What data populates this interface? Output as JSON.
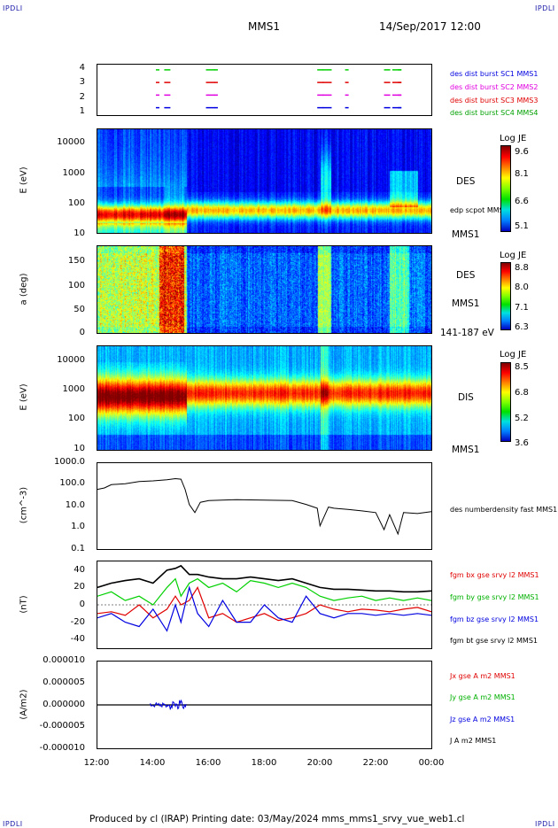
{
  "header": {
    "corner_left": "IPDLI",
    "corner_right": "IPDLI",
    "corner_bottom_left": "IPDLI",
    "corner_bottom_right": "IPDLI",
    "spacecraft": "MMS1",
    "datetime": "14/Sep/2017 12:00"
  },
  "footer": {
    "text": "Produced by cl (IRAP)   Printing date: 03/May/2024   mms_mms1_srvy_vue_web1.cl"
  },
  "colors": {
    "blue": "#0000e0",
    "magenta": "#e000e0",
    "red": "#e00000",
    "green": "#00d000",
    "black": "#000000"
  },
  "chart_data": [
    {
      "type": "scatter",
      "panel": "burst-availability",
      "y_ticks": [
        "4",
        "3",
        "2",
        "1"
      ],
      "legend": [
        {
          "label": "des dist burst SC1 MMS1",
          "color": "#0000e0"
        },
        {
          "label": "des dist burst SC2 MMS2",
          "color": "#e000e0"
        },
        {
          "label": "des dist burst SC3 MMS3",
          "color": "#e00000"
        },
        {
          "label": "des dist burst SC4 MMS4",
          "color": "#00d000"
        }
      ]
    },
    {
      "type": "heatmap",
      "panel": "des-energy-spectrogram",
      "ylabel": "E (eV)",
      "y_ticks": [
        "10000",
        "1000",
        "100",
        "10"
      ],
      "ylim": [
        10,
        30000
      ],
      "log": true,
      "right_labels": [
        "DES",
        "edp scpot MMS1",
        "MMS1"
      ],
      "colorbar": {
        "title": "Log JE",
        "ticks": [
          "9.6",
          "8.1",
          "6.6",
          "5.1"
        ]
      }
    },
    {
      "type": "heatmap",
      "panel": "des-pitch-angle",
      "ylabel": "a (deg)",
      "y_ticks": [
        "150",
        "100",
        "50",
        "0"
      ],
      "ylim": [
        0,
        180
      ],
      "right_labels": [
        "DES",
        "MMS1",
        "141-187 eV"
      ],
      "colorbar": {
        "title": "Log JE",
        "ticks": [
          "8.8",
          "8.0",
          "7.1",
          "6.3"
        ]
      }
    },
    {
      "type": "heatmap",
      "panel": "dis-energy-spectrogram",
      "ylabel": "E (eV)",
      "y_ticks": [
        "10000",
        "1000",
        "100",
        "10"
      ],
      "ylim": [
        10,
        30000
      ],
      "log": true,
      "right_labels": [
        "DIS",
        "MMS1"
      ],
      "colorbar": {
        "title": "Log JE",
        "ticks": [
          "8.5",
          "6.8",
          "5.2",
          "3.6"
        ]
      }
    },
    {
      "type": "line",
      "panel": "electron-density",
      "ylabel": "(cm^-3)",
      "y_ticks": [
        "1000.0",
        "100.0",
        "10.0",
        "1.0",
        "0.1"
      ],
      "ylim": [
        0.1,
        1000
      ],
      "log": true,
      "x": [
        12.0,
        12.25,
        12.5,
        13.0,
        13.5,
        14.0,
        14.5,
        14.8,
        15.0,
        15.15,
        15.3,
        15.5,
        15.7,
        16.0,
        17.0,
        18.0,
        19.0,
        19.5,
        19.9,
        20.0,
        20.3,
        20.5,
        21.0,
        21.5,
        22.0,
        22.3,
        22.5,
        22.8,
        23.0,
        23.5,
        24.0
      ],
      "series": [
        {
          "name": "des numberdensity fast MMS1",
          "color": "#000000",
          "values": [
            60,
            70,
            100,
            110,
            140,
            150,
            170,
            190,
            180,
            60,
            12,
            5,
            15,
            18,
            20,
            19,
            18,
            12,
            8,
            1.2,
            9,
            8,
            7,
            6,
            5,
            0.8,
            4,
            0.5,
            5,
            4.5,
            5.5
          ]
        }
      ]
    },
    {
      "type": "line",
      "panel": "magnetic-field",
      "ylabel": "(nT)",
      "y_ticks": [
        "40",
        "20",
        "0",
        "-20",
        "-40"
      ],
      "ylim": [
        -50,
        50
      ],
      "x": [
        12.0,
        12.5,
        13.0,
        13.5,
        14.0,
        14.5,
        14.8,
        15.0,
        15.3,
        15.6,
        16.0,
        16.5,
        17.0,
        17.5,
        18.0,
        18.5,
        19.0,
        19.5,
        20.0,
        20.5,
        21.0,
        21.5,
        22.0,
        22.5,
        23.0,
        23.5,
        24.0
      ],
      "series": [
        {
          "name": "fgm bx gse srvy l2 MMS1",
          "color": "#e00000",
          "values": [
            -10,
            -8,
            -12,
            0,
            -15,
            -5,
            10,
            0,
            5,
            20,
            -15,
            -10,
            -20,
            -15,
            -10,
            -18,
            -15,
            -10,
            0,
            -5,
            -8,
            -5,
            -6,
            -8,
            -5,
            -3,
            -8
          ]
        },
        {
          "name": "fgm by gse srvy l2 MMS1",
          "color": "#00d000",
          "values": [
            10,
            15,
            5,
            10,
            0,
            20,
            30,
            10,
            25,
            30,
            20,
            25,
            15,
            28,
            25,
            20,
            25,
            20,
            10,
            5,
            8,
            10,
            5,
            8,
            5,
            8,
            5
          ]
        },
        {
          "name": "fgm bz gse srvy l2 MMS1",
          "color": "#0000e0",
          "values": [
            -15,
            -10,
            -20,
            -25,
            -5,
            -30,
            0,
            -20,
            20,
            -10,
            -25,
            5,
            -20,
            -20,
            0,
            -15,
            -20,
            10,
            -10,
            -15,
            -10,
            -10,
            -12,
            -10,
            -12,
            -10,
            -12
          ]
        },
        {
          "name": "fgm bt gse srvy l2 MMS1",
          "color": "#000000",
          "values": [
            20,
            25,
            28,
            30,
            25,
            40,
            42,
            45,
            35,
            35,
            32,
            30,
            30,
            32,
            30,
            28,
            30,
            25,
            20,
            18,
            18,
            17,
            16,
            16,
            15,
            15,
            16
          ]
        }
      ]
    },
    {
      "type": "line",
      "panel": "current-density",
      "ylabel": "(A/m2)",
      "y_ticks": [
        "0.000010",
        "0.000005",
        "0.000000",
        "-0.000005",
        "-0.000010"
      ],
      "ylim": [
        -1e-05,
        1e-05
      ],
      "legend": [
        {
          "label": "Jx gse A m2 MMS1",
          "color": "#e00000"
        },
        {
          "label": "Jy gse A m2 MMS1",
          "color": "#00d000"
        },
        {
          "label": "Jz gse A m2 MMS1",
          "color": "#0000e0"
        },
        {
          "label": "J A m2 MMS1",
          "color": "#000000"
        }
      ]
    }
  ],
  "x_axis": {
    "ticks": [
      "12:00",
      "14:00",
      "16:00",
      "18:00",
      "20:00",
      "22:00",
      "00:00"
    ],
    "range_hours": [
      12,
      24
    ]
  }
}
